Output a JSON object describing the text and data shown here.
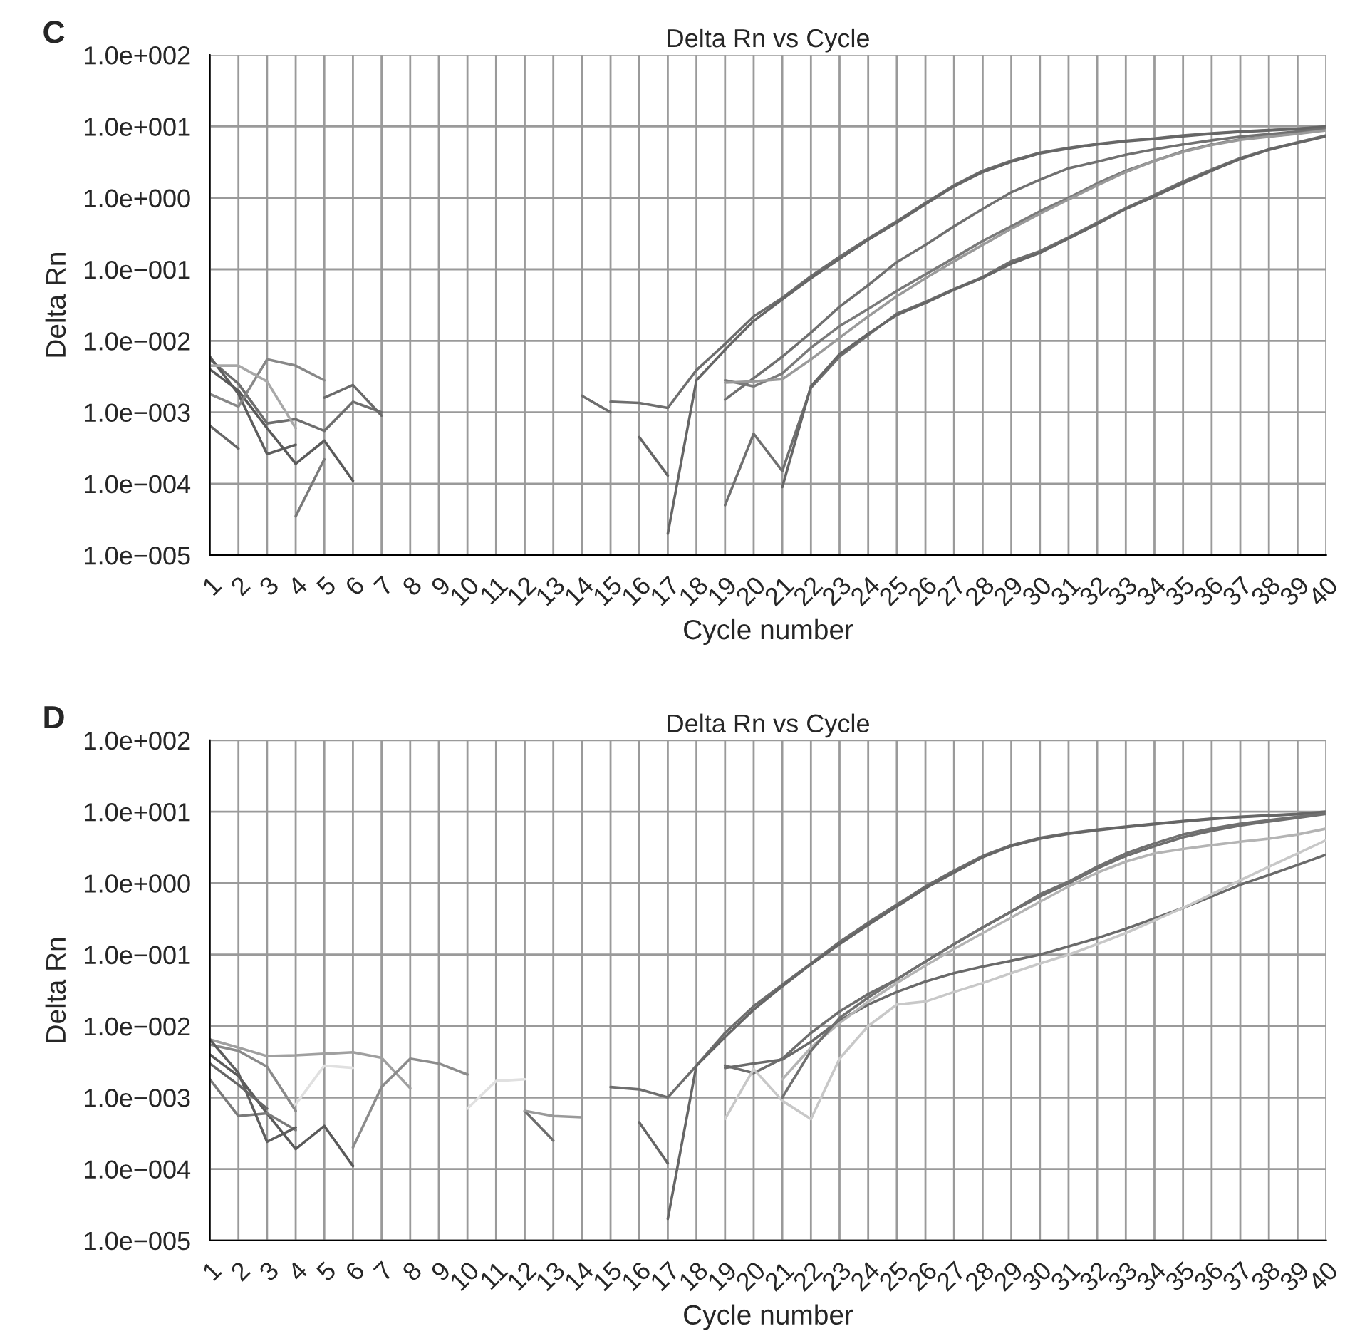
{
  "chart_data": [
    {
      "type": "line",
      "title": "Delta Rn vs Cycle",
      "xlabel": "Cycle number",
      "ylabel": "Delta Rn",
      "annotations": [
        "C"
      ],
      "log": "y",
      "grid": true,
      "xlim": [
        1,
        40
      ],
      "xticks": [
        1,
        2,
        3,
        4,
        5,
        6,
        7,
        8,
        9,
        10,
        11,
        12,
        13,
        14,
        15,
        16,
        17,
        18,
        19,
        20,
        21,
        22,
        23,
        24,
        25,
        26,
        27,
        28,
        29,
        30,
        31,
        32,
        33,
        34,
        35,
        36,
        37,
        38,
        39,
        40
      ],
      "ylim": [
        1e-05,
        100
      ],
      "yticks": [
        {
          "value": 1e-05,
          "label": "1.0e−005"
        },
        {
          "value": 0.0001,
          "label": "1.0e−004"
        },
        {
          "value": 0.001,
          "label": "1.0e−003"
        },
        {
          "value": 0.01,
          "label": "1.0e−002"
        },
        {
          "value": 0.1,
          "label": "1.0e−001"
        },
        {
          "value": 1,
          "label": "1.0e+000"
        },
        {
          "value": 10,
          "label": "1.0e+001"
        },
        {
          "value": 100,
          "label": "1.0e+002"
        }
      ],
      "series": [
        {
          "color": "#6e6e6e",
          "x": [
            15,
            16,
            17,
            18,
            19,
            20,
            21,
            22,
            23,
            24,
            25,
            26,
            27,
            28,
            29,
            30,
            31,
            32,
            33,
            34,
            35,
            36,
            37,
            38,
            39,
            40
          ],
          "values": [
            0.0014,
            0.00135,
            0.00115,
            0.0039,
            0.009,
            0.022,
            0.04,
            0.08,
            0.15,
            0.27,
            0.47,
            0.85,
            1.5,
            2.4,
            3.3,
            4.3,
            5,
            5.7,
            6.3,
            6.8,
            7.5,
            8,
            8.5,
            8.9,
            9.3,
            10
          ]
        },
        {
          "color": "#666666",
          "x": [
            17,
            18,
            19,
            20,
            21,
            22,
            23,
            24,
            25,
            26,
            27,
            28,
            29,
            30,
            31,
            32,
            33,
            34,
            35,
            36,
            37,
            38,
            39,
            40
          ],
          "values": [
            2e-05,
            0.0028,
            0.0075,
            0.019,
            0.038,
            0.075,
            0.14,
            0.26,
            0.45,
            0.82,
            1.45,
            2.3,
            3.2,
            4.2,
            4.9,
            5.6,
            6.2,
            6.7,
            7.3,
            7.9,
            8.4,
            8.8,
            9.2,
            9.9
          ]
        },
        {
          "color": "#707070",
          "x": [
            19,
            20,
            21,
            22,
            23,
            24,
            25,
            26,
            27,
            28,
            29,
            30,
            31,
            32,
            33,
            34,
            35,
            36,
            37,
            38,
            39,
            40
          ],
          "values": [
            0.0015,
            0.003,
            0.006,
            0.013,
            0.03,
            0.06,
            0.126,
            0.22,
            0.4,
            0.7,
            1.2,
            1.8,
            2.6,
            3.2,
            4,
            4.8,
            5.6,
            6.4,
            7.2,
            7.8,
            8.5,
            9.5
          ]
        },
        {
          "color": "#7a7a7a",
          "x": [
            19,
            20,
            21,
            22,
            23,
            24,
            25,
            26,
            27,
            28,
            29,
            30,
            31,
            32,
            33,
            34,
            35,
            36,
            37,
            38,
            39,
            40
          ],
          "values": [
            0.0028,
            0.0023,
            0.0035,
            0.008,
            0.016,
            0.028,
            0.05,
            0.085,
            0.145,
            0.25,
            0.4,
            0.65,
            1,
            1.6,
            2.4,
            3.3,
            4.5,
            5.6,
            6.6,
            7.3,
            8,
            9
          ]
        },
        {
          "color": "#9a9a9a",
          "x": [
            19,
            20,
            21,
            22,
            23,
            24,
            25,
            26,
            27,
            28,
            29,
            30,
            31,
            32,
            33,
            34,
            35,
            36,
            37,
            38,
            39,
            40
          ],
          "values": [
            0.0026,
            0.0027,
            0.0029,
            0.0055,
            0.011,
            0.022,
            0.042,
            0.075,
            0.13,
            0.22,
            0.37,
            0.6,
            0.95,
            1.5,
            2.3,
            3.3,
            4.4,
            5.5,
            6.5,
            7.2,
            7.9,
            8.8
          ]
        },
        {
          "color": "#707070",
          "x": [
            19,
            20,
            21,
            22,
            23,
            24,
            25,
            26,
            27,
            28,
            29,
            30,
            31,
            32,
            33,
            34,
            35,
            36,
            37,
            38,
            39,
            40
          ],
          "values": [
            5e-05,
            0.0005,
            0.00015,
            0.0022,
            0.006,
            0.012,
            0.024,
            0.035,
            0.053,
            0.078,
            0.13,
            0.18,
            0.28,
            0.45,
            0.72,
            1.1,
            1.7,
            2.5,
            3.6,
            4.8,
            6,
            7.5
          ]
        },
        {
          "color": "#666666",
          "x": [
            21,
            22,
            23,
            24,
            25,
            26,
            27,
            28,
            29,
            30,
            31,
            32,
            33,
            34,
            35,
            36,
            37,
            38,
            39,
            40
          ],
          "values": [
            9e-05,
            0.0023,
            0.0065,
            0.0125,
            0.023,
            0.034,
            0.052,
            0.076,
            0.12,
            0.17,
            0.27,
            0.43,
            0.7,
            1.05,
            1.6,
            2.4,
            3.5,
            4.7,
            5.9,
            7.3
          ]
        },
        {
          "color": "#6e6e6e",
          "x": [
            1,
            2,
            3,
            4,
            5,
            6,
            7
          ],
          "values": [
            0.0055,
            0.0025,
            0.0007,
            0.0008,
            0.00055,
            0.0014,
            0.001
          ]
        },
        {
          "color": "#5e5e5e",
          "x": [
            1,
            2,
            3,
            4
          ],
          "values": [
            0.006,
            0.0018,
            0.00026,
            0.00035
          ]
        },
        {
          "color": "#5a5a5a",
          "x": [
            1,
            2,
            3,
            4,
            5,
            6
          ],
          "values": [
            0.004,
            0.002,
            0.0006,
            0.00019,
            0.0004,
            0.00011
          ]
        },
        {
          "color": "#666666",
          "x": [
            1,
            2
          ],
          "values": [
            0.00065,
            0.00031
          ]
        },
        {
          "color": "#888888",
          "x": [
            1,
            2,
            3,
            4,
            5
          ],
          "values": [
            0.0018,
            0.0012,
            0.0055,
            0.0045,
            0.0028
          ]
        },
        {
          "color": "#a8a8a8",
          "x": [
            1,
            2,
            3,
            4
          ],
          "values": [
            0.0045,
            0.0045,
            0.0027,
            0.0006
          ]
        },
        {
          "color": "#6a6a6a",
          "x": [
            5,
            6,
            7
          ],
          "values": [
            0.0016,
            0.0024,
            0.0009
          ]
        },
        {
          "color": "#7a7a7a",
          "x": [
            4,
            5
          ],
          "values": [
            3.5e-05,
            0.00022
          ]
        },
        {
          "color": "#6e6e6e",
          "x": [
            14,
            15
          ],
          "values": [
            0.0017,
            0.001
          ]
        },
        {
          "color": "#666666",
          "x": [
            16,
            17
          ],
          "values": [
            0.00045,
            0.00013
          ]
        }
      ]
    },
    {
      "type": "line",
      "title": "Delta Rn vs Cycle",
      "xlabel": "Cycle number",
      "ylabel": "Delta Rn",
      "annotations": [
        "D"
      ],
      "log": "y",
      "grid": true,
      "xlim": [
        1,
        40
      ],
      "xticks": [
        1,
        2,
        3,
        4,
        5,
        6,
        7,
        8,
        9,
        10,
        11,
        12,
        13,
        14,
        15,
        16,
        17,
        18,
        19,
        20,
        21,
        22,
        23,
        24,
        25,
        26,
        27,
        28,
        29,
        30,
        31,
        32,
        33,
        34,
        35,
        36,
        37,
        38,
        39,
        40
      ],
      "ylim": [
        1e-05,
        100
      ],
      "yticks": [
        {
          "value": 1e-05,
          "label": "1.0e−005"
        },
        {
          "value": 0.0001,
          "label": "1.0e−004"
        },
        {
          "value": 0.001,
          "label": "1.0e−003"
        },
        {
          "value": 0.01,
          "label": "1.0e−002"
        },
        {
          "value": 0.1,
          "label": "1.0e−001"
        },
        {
          "value": 1,
          "label": "1.0e+000"
        },
        {
          "value": 10,
          "label": "1.0e+001"
        },
        {
          "value": 100,
          "label": "1.0e+002"
        }
      ],
      "series": [
        {
          "color": "#6e6e6e",
          "x": [
            15,
            16,
            17,
            18,
            19,
            20,
            21,
            22,
            23,
            24,
            25,
            26,
            27,
            28,
            29,
            30,
            31,
            32,
            33,
            34,
            35,
            36,
            37,
            38,
            39,
            40
          ],
          "values": [
            0.0014,
            0.0013,
            0.001,
            0.0028,
            0.008,
            0.019,
            0.038,
            0.075,
            0.15,
            0.28,
            0.5,
            0.9,
            1.5,
            2.4,
            3.4,
            4.3,
            5,
            5.6,
            6.2,
            6.8,
            7.4,
            8,
            8.5,
            8.9,
            9.3,
            10
          ]
        },
        {
          "color": "#666666",
          "x": [
            17,
            18,
            19,
            20,
            21,
            22,
            23,
            24,
            25,
            26,
            27,
            28,
            29,
            30,
            31,
            32,
            33,
            34,
            35,
            36,
            37,
            38,
            39,
            40
          ],
          "values": [
            2e-05,
            0.0028,
            0.007,
            0.017,
            0.036,
            0.073,
            0.14,
            0.26,
            0.47,
            0.85,
            1.4,
            2.3,
            3.3,
            4.2,
            4.9,
            5.5,
            6.1,
            6.7,
            7.3,
            7.9,
            8.4,
            8.8,
            9.2,
            9.8
          ]
        },
        {
          "color": "#6e6e6e",
          "x": [
            19,
            20,
            21,
            22,
            23,
            24,
            25,
            26,
            27,
            28,
            29,
            30,
            31,
            32,
            33,
            34,
            35,
            36,
            37,
            38,
            39,
            40
          ],
          "values": [
            0.0028,
            0.0022,
            0.0035,
            0.008,
            0.016,
            0.028,
            0.045,
            0.08,
            0.14,
            0.24,
            0.4,
            0.65,
            1,
            1.6,
            2.4,
            3.3,
            4.4,
            5.4,
            6.4,
            7.3,
            8.2,
            9.3
          ]
        },
        {
          "color": "#6a6a6a",
          "x": [
            19,
            20,
            21,
            22,
            23,
            24,
            25,
            26,
            27,
            28,
            29,
            30,
            31,
            32,
            33,
            34,
            35,
            36,
            37,
            38,
            39,
            40
          ],
          "values": [
            0.0026,
            0.003,
            0.0034,
            0.006,
            0.012,
            0.02,
            0.03,
            0.042,
            0.055,
            0.068,
            0.082,
            0.1,
            0.13,
            0.17,
            0.23,
            0.32,
            0.45,
            0.65,
            0.95,
            1.3,
            1.8,
            2.5
          ]
        },
        {
          "color": "#c8c8c8",
          "x": [
            19,
            20,
            21,
            22,
            23,
            24,
            25,
            26,
            27,
            28,
            29,
            30,
            31,
            32,
            33,
            34,
            35,
            36,
            37,
            38,
            39,
            40
          ],
          "values": [
            0.0005,
            0.0025,
            0.0009,
            0.0005,
            0.0035,
            0.01,
            0.02,
            0.022,
            0.03,
            0.04,
            0.055,
            0.075,
            0.1,
            0.14,
            0.2,
            0.3,
            0.45,
            0.7,
            1.1,
            1.7,
            2.6,
            4
          ]
        },
        {
          "color": "#b4b4b4",
          "x": [
            21,
            22,
            23,
            24,
            25,
            26,
            27,
            28,
            29,
            30,
            31,
            32,
            33,
            34,
            35,
            36,
            37,
            38,
            39,
            40
          ],
          "values": [
            0.0018,
            0.005,
            0.011,
            0.022,
            0.04,
            0.07,
            0.12,
            0.2,
            0.33,
            0.55,
            0.9,
            1.4,
            2,
            2.6,
            3,
            3.4,
            3.8,
            4.2,
            4.8,
            5.8
          ]
        },
        {
          "color": "#707070",
          "x": [
            21,
            22,
            23,
            24,
            25,
            26,
            27,
            28,
            29,
            30,
            31,
            32,
            33,
            34,
            35,
            36,
            37,
            38,
            39,
            40
          ],
          "values": [
            0.001,
            0.0045,
            0.013,
            0.025,
            0.045,
            0.08,
            0.14,
            0.24,
            0.4,
            0.7,
            1.05,
            1.7,
            2.6,
            3.6,
            4.8,
            5.8,
            6.8,
            7.6,
            8.5,
            9.5
          ]
        },
        {
          "color": "#a0a0a0",
          "x": [
            1,
            2,
            3,
            4,
            5,
            6,
            7,
            8
          ],
          "values": [
            0.0065,
            0.005,
            0.0038,
            0.0039,
            0.0041,
            0.0043,
            0.0036,
            0.00135
          ]
        },
        {
          "color": "#8a8a8a",
          "x": [
            1,
            2,
            3,
            4
          ],
          "values": [
            0.0055,
            0.0045,
            0.0027,
            0.00065
          ]
        },
        {
          "color": "#e0e0e0",
          "x": [
            4,
            5,
            6
          ],
          "values": [
            0.0008,
            0.0028,
            0.0026
          ]
        },
        {
          "color": "#8c8c8c",
          "x": [
            6,
            7,
            8,
            9,
            10
          ],
          "values": [
            0.0002,
            0.0014,
            0.0035,
            0.003,
            0.0021
          ]
        },
        {
          "color": "#e0e0e0",
          "x": [
            10,
            11,
            12
          ],
          "values": [
            0.0007,
            0.0017,
            0.0018
          ]
        },
        {
          "color": "#6e6e6e",
          "x": [
            12,
            13
          ],
          "values": [
            0.00065,
            0.00025
          ]
        },
        {
          "color": "#9a9a9a",
          "x": [
            12,
            13,
            14
          ],
          "values": [
            0.00065,
            0.00055,
            0.00053
          ]
        },
        {
          "color": "#5a5a5a",
          "x": [
            1,
            2,
            3,
            4,
            5,
            6
          ],
          "values": [
            0.004,
            0.002,
            0.0006,
            0.00019,
            0.0004,
            0.00011
          ]
        },
        {
          "color": "#7a7a7a",
          "x": [
            1,
            2,
            3,
            4
          ],
          "values": [
            0.0018,
            0.00055,
            0.0006,
            0.00035
          ]
        },
        {
          "color": "#5e5e5e",
          "x": [
            1,
            2,
            3,
            4
          ],
          "values": [
            0.0065,
            0.0022,
            0.00024,
            0.00038
          ]
        },
        {
          "color": "#666666",
          "x": [
            1,
            2,
            3
          ],
          "values": [
            0.003,
            0.0015,
            0.0007
          ]
        },
        {
          "color": "#666666",
          "x": [
            16,
            17
          ],
          "values": [
            0.00045,
            0.00012
          ]
        }
      ]
    }
  ]
}
